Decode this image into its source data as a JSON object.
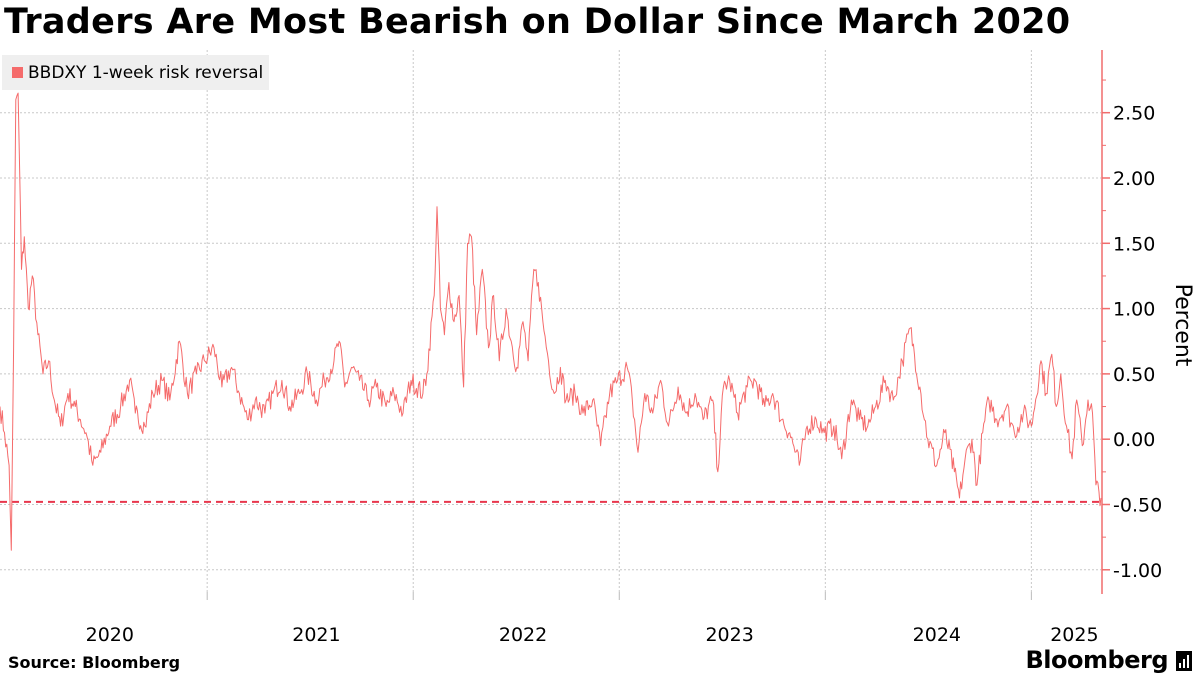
{
  "title": "Traders Are Most Bearish on Dollar Since March 2020",
  "source": "Source: Bloomberg",
  "brand": "Bloomberg",
  "brand_icon": "bar-chart-icon",
  "colors": {
    "series": "#f56b6b",
    "reference": "#e8364c",
    "grid": "#c8c8c8",
    "axis": "#f06d6d"
  },
  "chart_data": {
    "type": "line",
    "series": [
      {
        "name": "BBDXY 1-week risk reversal",
        "x_start": "2019-12-20",
        "x_end": "2025-04-17",
        "keypoints": [
          [
            "2019-12-20",
            0.25
          ],
          [
            "2019-12-28",
            0.05
          ],
          [
            "2020-01-05",
            -0.2
          ],
          [
            "2020-01-09",
            -0.85
          ],
          [
            "2020-01-13",
            0.7
          ],
          [
            "2020-01-17",
            2.6
          ],
          [
            "2020-01-21",
            2.65
          ],
          [
            "2020-01-27",
            1.3
          ],
          [
            "2020-02-01",
            1.55
          ],
          [
            "2020-02-08",
            1.0
          ],
          [
            "2020-02-15",
            1.25
          ],
          [
            "2020-02-25",
            0.8
          ],
          [
            "2020-03-05",
            0.5
          ],
          [
            "2020-03-15",
            0.6
          ],
          [
            "2020-03-25",
            0.3
          ],
          [
            "2020-04-05",
            0.1
          ],
          [
            "2020-04-18",
            0.35
          ],
          [
            "2020-05-01",
            0.25
          ],
          [
            "2020-05-10",
            0.15
          ],
          [
            "2020-05-20",
            0.05
          ],
          [
            "2020-06-01",
            -0.2
          ],
          [
            "2020-06-15",
            -0.1
          ],
          [
            "2020-07-01",
            0.1
          ],
          [
            "2020-07-20",
            0.25
          ],
          [
            "2020-08-05",
            0.45
          ],
          [
            "2020-08-15",
            0.2
          ],
          [
            "2020-09-01",
            0.1
          ],
          [
            "2020-09-15",
            0.35
          ],
          [
            "2020-10-01",
            0.45
          ],
          [
            "2020-10-15",
            0.3
          ],
          [
            "2020-11-01",
            0.75
          ],
          [
            "2020-11-15",
            0.35
          ],
          [
            "2020-12-01",
            0.5
          ],
          [
            "2020-12-15",
            0.6
          ],
          [
            "2021-01-01",
            0.7
          ],
          [
            "2021-01-15",
            0.4
          ],
          [
            "2021-02-01",
            0.55
          ],
          [
            "2021-02-15",
            0.35
          ],
          [
            "2021-03-01",
            0.15
          ],
          [
            "2021-03-15",
            0.3
          ],
          [
            "2021-04-01",
            0.2
          ],
          [
            "2021-04-15",
            0.35
          ],
          [
            "2021-05-01",
            0.45
          ],
          [
            "2021-05-15",
            0.25
          ],
          [
            "2021-06-01",
            0.35
          ],
          [
            "2021-06-15",
            0.5
          ],
          [
            "2021-07-01",
            0.3
          ],
          [
            "2021-07-15",
            0.45
          ],
          [
            "2021-08-01",
            0.6
          ],
          [
            "2021-08-10",
            0.75
          ],
          [
            "2021-08-20",
            0.4
          ],
          [
            "2021-09-01",
            0.55
          ],
          [
            "2021-09-15",
            0.45
          ],
          [
            "2021-10-01",
            0.3
          ],
          [
            "2021-10-15",
            0.4
          ],
          [
            "2021-11-01",
            0.25
          ],
          [
            "2021-11-15",
            0.35
          ],
          [
            "2021-12-01",
            0.2
          ],
          [
            "2021-12-15",
            0.45
          ],
          [
            "2022-01-05",
            0.35
          ],
          [
            "2022-01-12",
            0.5
          ],
          [
            "2022-01-25",
            1.1
          ],
          [
            "2022-01-30",
            1.78
          ],
          [
            "2022-02-05",
            1.0
          ],
          [
            "2022-02-12",
            0.8
          ],
          [
            "2022-02-20",
            1.2
          ],
          [
            "2022-03-01",
            0.9
          ],
          [
            "2022-03-10",
            1.1
          ],
          [
            "2022-03-18",
            0.4
          ],
          [
            "2022-03-25",
            1.5
          ],
          [
            "2022-04-01",
            1.55
          ],
          [
            "2022-04-10",
            0.8
          ],
          [
            "2022-04-20",
            1.3
          ],
          [
            "2022-05-01",
            0.7
          ],
          [
            "2022-05-10",
            1.1
          ],
          [
            "2022-05-20",
            0.6
          ],
          [
            "2022-06-01",
            1.0
          ],
          [
            "2022-06-10",
            0.75
          ],
          [
            "2022-06-20",
            0.55
          ],
          [
            "2022-07-01",
            0.9
          ],
          [
            "2022-07-10",
            0.6
          ],
          [
            "2022-07-20",
            1.3
          ],
          [
            "2022-07-28",
            1.2
          ],
          [
            "2022-08-05",
            0.9
          ],
          [
            "2022-08-15",
            0.6
          ],
          [
            "2022-08-25",
            0.35
          ],
          [
            "2022-09-05",
            0.55
          ],
          [
            "2022-09-15",
            0.3
          ],
          [
            "2022-10-01",
            0.35
          ],
          [
            "2022-10-15",
            0.2
          ],
          [
            "2022-11-01",
            0.3
          ],
          [
            "2022-11-15",
            -0.05
          ],
          [
            "2022-12-01",
            0.35
          ],
          [
            "2022-12-15",
            0.45
          ],
          [
            "2023-01-01",
            0.55
          ],
          [
            "2023-01-10",
            0.3
          ],
          [
            "2023-01-20",
            -0.1
          ],
          [
            "2023-02-01",
            0.35
          ],
          [
            "2023-02-15",
            0.2
          ],
          [
            "2023-03-01",
            0.45
          ],
          [
            "2023-03-15",
            0.1
          ],
          [
            "2023-04-01",
            0.4
          ],
          [
            "2023-04-15",
            0.2
          ],
          [
            "2023-05-01",
            0.35
          ],
          [
            "2023-05-15",
            0.15
          ],
          [
            "2023-06-01",
            0.3
          ],
          [
            "2023-06-10",
            -0.25
          ],
          [
            "2023-06-20",
            0.4
          ],
          [
            "2023-07-01",
            0.45
          ],
          [
            "2023-07-15",
            0.2
          ],
          [
            "2023-08-01",
            0.4
          ],
          [
            "2023-08-15",
            0.45
          ],
          [
            "2023-09-01",
            0.25
          ],
          [
            "2023-09-15",
            0.35
          ],
          [
            "2023-10-01",
            0.15
          ],
          [
            "2023-10-15",
            0.05
          ],
          [
            "2023-11-01",
            -0.2
          ],
          [
            "2023-11-15",
            0.1
          ],
          [
            "2023-12-01",
            0.15
          ],
          [
            "2023-12-15",
            0.05
          ],
          [
            "2024-01-01",
            0.1
          ],
          [
            "2024-01-15",
            -0.15
          ],
          [
            "2024-02-01",
            0.3
          ],
          [
            "2024-02-15",
            0.15
          ],
          [
            "2024-03-01",
            0.1
          ],
          [
            "2024-03-15",
            0.25
          ],
          [
            "2024-04-01",
            0.45
          ],
          [
            "2024-04-15",
            0.3
          ],
          [
            "2024-05-01",
            0.6
          ],
          [
            "2024-05-15",
            0.85
          ],
          [
            "2024-06-01",
            0.4
          ],
          [
            "2024-06-15",
            0.0
          ],
          [
            "2024-07-01",
            -0.2
          ],
          [
            "2024-07-15",
            0.05
          ],
          [
            "2024-08-01",
            -0.25
          ],
          [
            "2024-08-10",
            -0.45
          ],
          [
            "2024-08-20",
            -0.15
          ],
          [
            "2024-09-01",
            0.0
          ],
          [
            "2024-09-10",
            -0.35
          ],
          [
            "2024-09-20",
            0.05
          ],
          [
            "2024-10-01",
            0.3
          ],
          [
            "2024-10-15",
            0.15
          ],
          [
            "2024-11-01",
            0.25
          ],
          [
            "2024-11-15",
            0.05
          ],
          [
            "2024-12-01",
            0.2
          ],
          [
            "2024-12-15",
            0.1
          ],
          [
            "2025-01-01",
            0.6
          ],
          [
            "2025-01-10",
            0.35
          ],
          [
            "2025-01-20",
            0.65
          ],
          [
            "2025-01-28",
            0.25
          ],
          [
            "2025-02-05",
            0.5
          ],
          [
            "2025-02-15",
            0.1
          ],
          [
            "2025-02-25",
            -0.15
          ],
          [
            "2025-03-05",
            0.3
          ],
          [
            "2025-03-15",
            -0.05
          ],
          [
            "2025-03-25",
            0.3
          ],
          [
            "2025-04-02",
            0.2
          ],
          [
            "2025-04-08",
            -0.35
          ],
          [
            "2025-04-17",
            -0.45
          ]
        ]
      }
    ],
    "reference_line": {
      "y": -0.48,
      "style": "dashed"
    },
    "ylabel": "Percent",
    "y_ticks": [
      2.5,
      2.0,
      1.5,
      1.0,
      0.5,
      0.0,
      -0.5,
      -1.0
    ],
    "y_tick_labels": [
      "2.50",
      "2.00",
      "1.50",
      "1.00",
      "0.50",
      "0.00",
      "-0.50",
      "-1.00"
    ],
    "ylim": [
      -1.17,
      2.98
    ],
    "x_ticks": [
      "2020",
      "2021",
      "2022",
      "2023",
      "2024",
      "2025"
    ],
    "x_tick_dates": [
      "2020-07-01",
      "2021-07-01",
      "2022-07-01",
      "2023-07-01",
      "2024-07-01",
      "2025-03-01"
    ],
    "x_gridlines": [
      "2020-12-20",
      "2021-12-19",
      "2022-12-18",
      "2023-12-17",
      "2024-12-15"
    ],
    "grid": true,
    "y_axis_position": "right",
    "legend_position": "top-left"
  }
}
